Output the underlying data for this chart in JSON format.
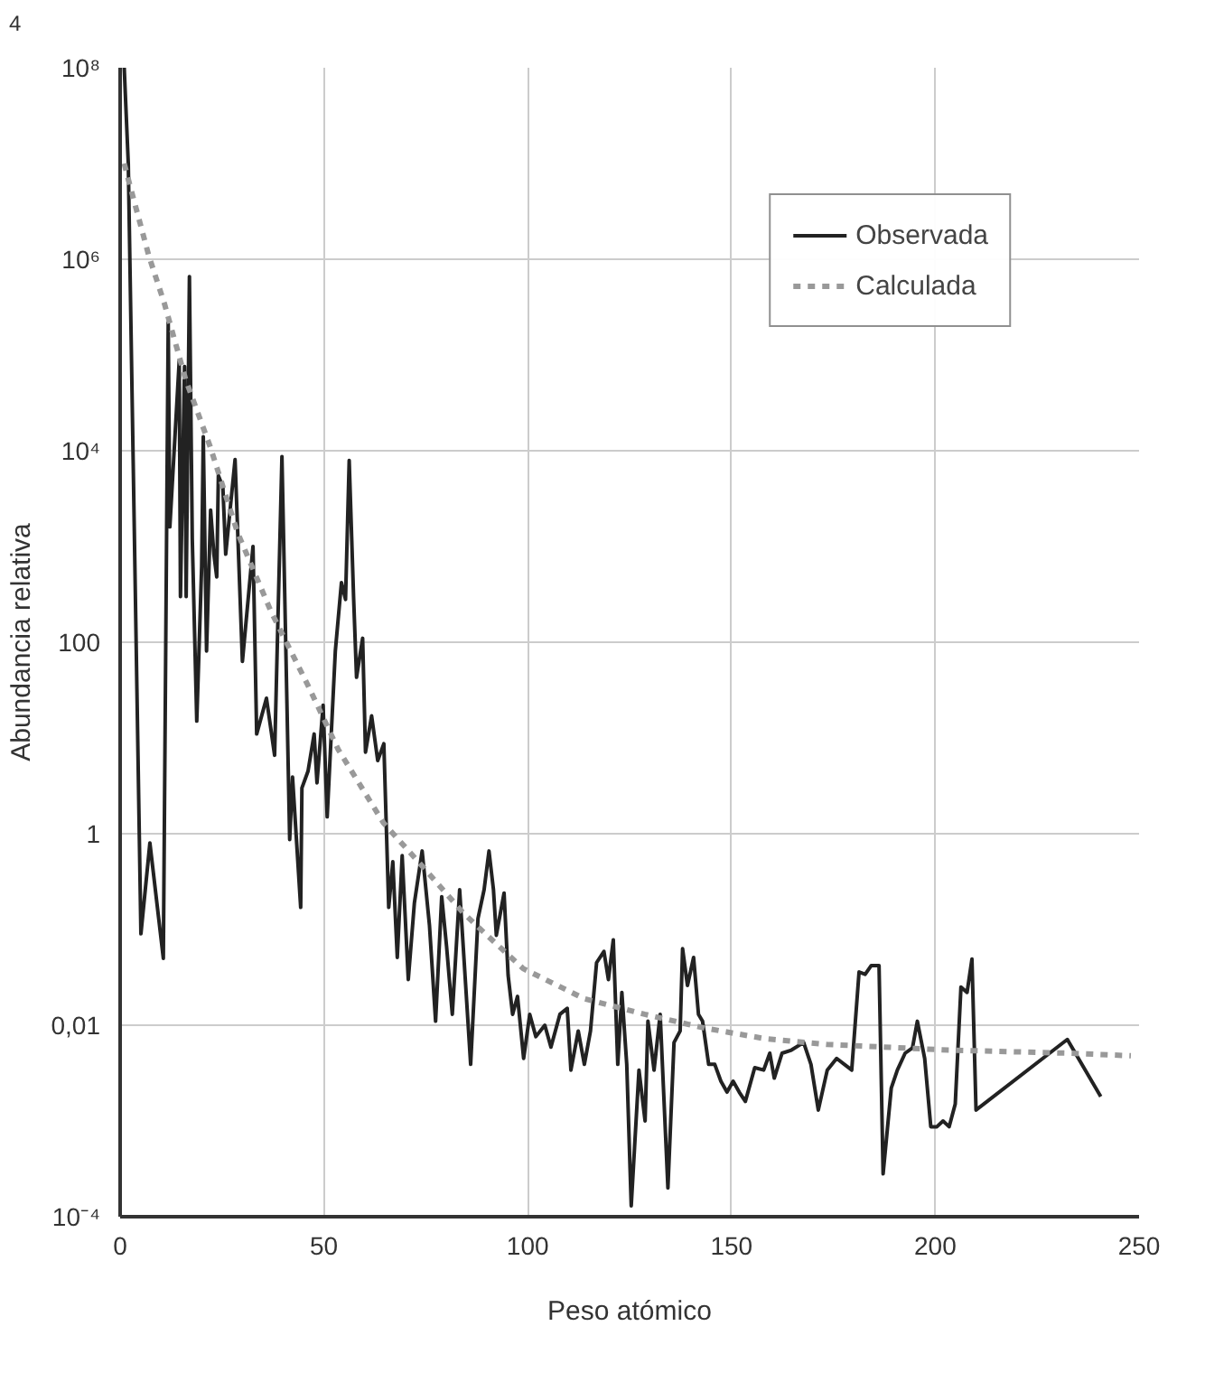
{
  "chart_data": {
    "type": "line",
    "xlabel": "Peso atómico",
    "ylabel": "Abundancia relativa",
    "annotations": [
      "4"
    ],
    "log": "y",
    "grid": true,
    "legend": "top right",
    "xlim": [
      0,
      250
    ],
    "xticks": [
      0,
      50,
      100,
      150,
      200,
      250
    ],
    "ylim": [
      0.0001,
      100000000
    ],
    "yticks": [
      {
        "value": 100000000,
        "label": "10⁸"
      },
      {
        "value": 1000000,
        "label": "10⁶"
      },
      {
        "value": 10000,
        "label": "10⁴"
      },
      100,
      1,
      {
        "value": 0.01,
        "label": "0,01"
      },
      {
        "value": 0.0001,
        "label": "10⁻⁴"
      }
    ],
    "series": [
      {
        "name": "Observada",
        "color": "#222222",
        "line_style": "solid",
        "x": [
          1,
          2,
          5.1,
          7.3,
          10.6,
          11.8,
          12.2,
          14.5,
          14.8,
          15.8,
          16.2,
          17.0,
          17.7,
          18.8,
          20.0,
          20.4,
          21.2,
          22.2,
          23.0,
          23.7,
          24.1,
          25.2,
          25.9,
          28.2,
          30.0,
          32.6,
          33.5,
          35.9,
          37.9,
          39.7,
          41.6,
          42.3,
          44.3,
          44.6,
          46.1,
          47.6,
          48.3,
          49.8,
          50.8,
          52.8,
          54.3,
          55.3,
          56.2,
          57.3,
          58.0,
          59.5,
          60.2,
          61.7,
          63.2,
          64.7,
          65.9,
          66.9,
          68.0,
          69.2,
          70.7,
          72.2,
          74.1,
          75.9,
          77.4,
          78.9,
          80.1,
          81.5,
          83.3,
          86.0,
          87.8,
          89.3,
          90.5,
          91.6,
          92.3,
          94.2,
          95.2,
          96.3,
          97.5,
          99.0,
          100.5,
          102.0,
          104.2,
          105.7,
          107.9,
          109.7,
          110.6,
          112.4,
          113.9,
          115.4,
          116.9,
          118.7,
          119.8,
          121.0,
          122.1,
          123.1,
          124.3,
          125.4,
          127.3,
          128.8,
          129.5,
          131.0,
          132.5,
          134.4,
          135.9,
          137.4,
          138.0,
          139.2,
          140.7,
          141.9,
          142.9,
          144.4,
          145.9,
          147.4,
          148.9,
          150.4,
          151.9,
          153.4,
          155.7,
          157.9,
          159.4,
          160.5,
          162.4,
          164.7,
          167.7,
          169.5,
          171.3,
          173.5,
          175.8,
          177.7,
          179.5,
          181.3,
          182.8,
          184.3,
          186.2,
          187.2,
          189.2,
          190.7,
          192.6,
          194.4,
          195.6,
          197.4,
          198.9,
          200.4,
          201.9,
          203.4,
          204.9,
          206.3,
          207.8,
          209.0,
          210.0,
          232.4,
          240.6
        ],
        "values": [
          100000000.0,
          10000000.0,
          0.09,
          0.8,
          0.05,
          220000.0,
          1600,
          87000.0,
          300,
          76000.0,
          300,
          660000.0,
          1200,
          15,
          620,
          14000.0,
          81,
          2400,
          830,
          480,
          5500,
          4200,
          830,
          8100,
          63,
          1000,
          11,
          26,
          6.6,
          8700,
          0.87,
          3.9,
          0.17,
          3.0,
          4.5,
          11,
          3.4,
          22,
          1.5,
          81,
          420,
          280,
          7900,
          280,
          43,
          110,
          7.1,
          17,
          5.8,
          8.7,
          0.17,
          0.51,
          0.051,
          0.59,
          0.03,
          0.19,
          0.66,
          0.11,
          0.011,
          0.22,
          0.066,
          0.013,
          0.26,
          0.0039,
          0.13,
          0.26,
          0.66,
          0.26,
          0.087,
          0.24,
          0.033,
          0.013,
          0.02,
          0.0045,
          0.013,
          0.0076,
          0.01,
          0.0059,
          0.013,
          0.015,
          0.0034,
          0.0087,
          0.0039,
          0.0087,
          0.045,
          0.059,
          0.03,
          0.078,
          0.0039,
          0.022,
          0.0039,
          0.00013,
          0.0034,
          0.001,
          0.011,
          0.0034,
          0.013,
          0.0002,
          0.0066,
          0.0087,
          0.063,
          0.026,
          0.051,
          0.013,
          0.011,
          0.0039,
          0.0039,
          0.0026,
          0.002,
          0.0026,
          0.002,
          0.0016,
          0.0036,
          0.0034,
          0.0051,
          0.0028,
          0.0051,
          0.0055,
          0.0066,
          0.0039,
          0.0013,
          0.0034,
          0.0045,
          0.0039,
          0.0034,
          0.036,
          0.034,
          0.042,
          0.042,
          0.00028,
          0.0022,
          0.0034,
          0.0051,
          0.0058,
          0.011,
          0.0045,
          0.00087,
          0.00087,
          0.001,
          0.00087,
          0.0015,
          0.025,
          0.022,
          0.049,
          0.0013,
          0.0071,
          0.0018
        ]
      },
      {
        "name": "Calculada",
        "color": "#999999",
        "line_style": "dotted",
        "x": [
          1,
          2.1,
          7,
          10.9,
          16.1,
          22.1,
          28.8,
          37,
          46,
          53.5,
          64.6,
          74.3,
          84.1,
          90,
          98.9,
          113.8,
          128.7,
          143.6,
          158.5,
          173.4,
          203.2,
          233,
          248
        ],
        "values": [
          10000000.0,
          6600000.0,
          1100000.0,
          340000.0,
          55000.0,
          11000.0,
          1400,
          210,
          36,
          7.6,
          1.3,
          0.45,
          0.15,
          0.087,
          0.039,
          0.019,
          0.013,
          0.0093,
          0.0072,
          0.0063,
          0.0055,
          0.0051,
          0.0048
        ]
      }
    ]
  }
}
